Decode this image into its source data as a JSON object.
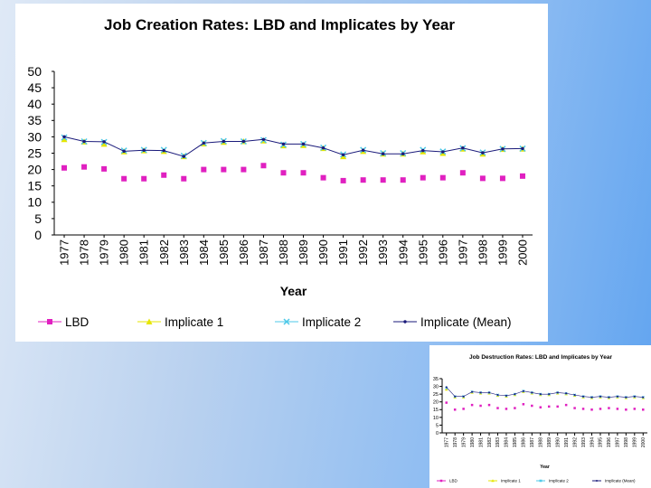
{
  "chart_data": [
    {
      "type": "line",
      "title": "Job Creation Rates: LBD and Implicates by Year",
      "xlabel": "Year",
      "ylabel": "",
      "ylim": [
        0,
        50
      ],
      "yticks": [
        0,
        5,
        10,
        15,
        20,
        25,
        30,
        35,
        40,
        45,
        50
      ],
      "categories": [
        "1977",
        "1978",
        "1979",
        "1980",
        "1981",
        "1982",
        "1983",
        "1984",
        "1985",
        "1986",
        "1987",
        "1988",
        "1989",
        "1990",
        "1991",
        "1992",
        "1993",
        "1994",
        "1995",
        "1996",
        "1997",
        "1998",
        "1999",
        "2000"
      ],
      "grid": false,
      "legend": "bottom",
      "series": [
        {
          "name": "LBD",
          "color": "#e020c0",
          "marker": "square",
          "line": false,
          "values": [
            20.5,
            20.8,
            20.2,
            17.2,
            17.2,
            18.3,
            17.2,
            20.0,
            20.0,
            20.0,
            21.2,
            19.0,
            19.0,
            17.5,
            16.6,
            16.8,
            16.8,
            16.8,
            17.5,
            17.5,
            19.0,
            17.3,
            17.3,
            18.0
          ]
        },
        {
          "name": "Implicate 1",
          "color": "#e6e600",
          "marker": "triangle",
          "line": false,
          "values": [
            29.2,
            28.5,
            27.8,
            25.5,
            25.8,
            25.6,
            24.0,
            27.9,
            28.4,
            28.6,
            28.8,
            27.3,
            27.4,
            26.5,
            24.0,
            25.6,
            24.8,
            24.8,
            25.5,
            25.0,
            26.3,
            24.8,
            26.2,
            26.3
          ]
        },
        {
          "name": "Implicate 2",
          "color": "#4cc8e8",
          "marker": "x",
          "line": false,
          "values": [
            29.8,
            28.6,
            28.4,
            25.8,
            26.0,
            26.0,
            24.2,
            28.1,
            28.7,
            28.6,
            29.0,
            27.6,
            27.8,
            26.7,
            24.6,
            26.0,
            25.0,
            25.0,
            26.0,
            25.5,
            26.5,
            25.2,
            26.3,
            26.4
          ]
        },
        {
          "name": "Implicate (Mean)",
          "color": "#1a1a7a",
          "marker": "dot",
          "line": true,
          "values": [
            30.0,
            28.6,
            28.5,
            25.6,
            25.9,
            25.8,
            24.0,
            28.1,
            28.6,
            28.6,
            29.2,
            27.8,
            27.8,
            26.6,
            24.5,
            25.9,
            24.8,
            24.8,
            25.8,
            25.4,
            26.6,
            25.1,
            26.3,
            26.4
          ]
        }
      ]
    },
    {
      "type": "line",
      "title": "Job Destruction Rates: LBD and Implicates by Year",
      "xlabel": "Year",
      "ylabel": "",
      "ylim": [
        0,
        35
      ],
      "yticks": [
        0,
        5,
        10,
        15,
        20,
        25,
        30,
        35
      ],
      "categories": [
        "1977",
        "1978",
        "1979",
        "1980",
        "1981",
        "1982",
        "1983",
        "1984",
        "1985",
        "1986",
        "1987",
        "1988",
        "1989",
        "1990",
        "1991",
        "1992",
        "1993",
        "1994",
        "1995",
        "1996",
        "1997",
        "1998",
        "1999",
        "2000"
      ],
      "grid": false,
      "legend": "bottom",
      "series": [
        {
          "name": "LBD",
          "color": "#e020c0",
          "marker": "square",
          "line": false,
          "values": [
            19.5,
            15.0,
            15.5,
            18.0,
            17.5,
            18.0,
            16.0,
            15.5,
            16.0,
            18.5,
            17.5,
            16.5,
            17.0,
            17.0,
            18.0,
            16.0,
            15.5,
            15.0,
            15.5,
            16.0,
            15.5,
            15.0,
            15.5,
            15.0
          ]
        },
        {
          "name": "Implicate 1",
          "color": "#e6e600",
          "marker": "triangle",
          "line": false,
          "values": [
            28.0,
            23.0,
            23.0,
            26.0,
            25.5,
            25.5,
            24.0,
            23.5,
            24.5,
            26.5,
            25.5,
            24.5,
            24.5,
            25.5,
            25.0,
            24.0,
            23.0,
            22.5,
            23.0,
            22.5,
            23.0,
            22.5,
            23.0,
            22.5
          ]
        },
        {
          "name": "Implicate 2",
          "color": "#4cc8e8",
          "marker": "x",
          "line": false,
          "values": [
            29.0,
            23.5,
            23.5,
            26.5,
            26.0,
            26.0,
            24.5,
            24.0,
            25.0,
            27.0,
            26.0,
            25.0,
            25.0,
            26.0,
            25.5,
            24.5,
            23.5,
            23.0,
            23.5,
            23.0,
            23.5,
            23.0,
            23.5,
            23.0
          ]
        },
        {
          "name": "Implicate (Mean)",
          "color": "#1a1a7a",
          "marker": "dot",
          "line": true,
          "values": [
            29.5,
            23.5,
            23.5,
            26.5,
            26.0,
            26.0,
            24.5,
            24.0,
            25.0,
            27.0,
            26.0,
            25.0,
            25.0,
            26.0,
            25.5,
            24.5,
            23.5,
            23.0,
            23.5,
            23.0,
            23.5,
            23.0,
            23.5,
            23.0
          ]
        }
      ]
    }
  ]
}
